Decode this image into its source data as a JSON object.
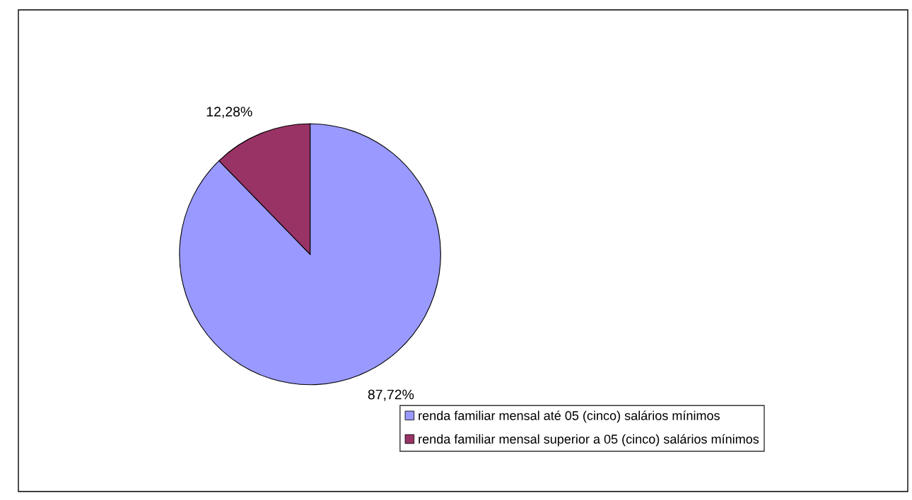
{
  "chart_data": {
    "type": "pie",
    "categories": [
      "renda familiar mensal até 05 (cinco) salários mínimos",
      "renda familiar mensal superior a 05 (cinco) salários mínimos"
    ],
    "values": [
      87.72,
      12.28
    ],
    "colors": [
      "#9999ff",
      "#993366"
    ],
    "value_labels": [
      "87,72%",
      "12,28%"
    ],
    "legend": "bottom right"
  }
}
